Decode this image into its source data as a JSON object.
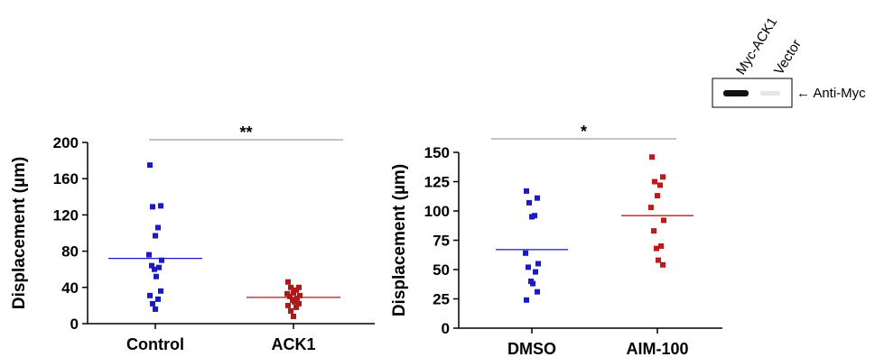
{
  "chart_data": [
    {
      "type": "scatter",
      "ylabel": "Displacement (µm)",
      "ylim": [
        0,
        200
      ],
      "yticks": [
        0,
        40,
        80,
        120,
        160,
        200
      ],
      "categories": [
        "Control",
        "ACK1"
      ],
      "significance": "**",
      "grid": false,
      "series": [
        {
          "color": "#1a1acc",
          "values": [
            175,
            130,
            129,
            106,
            97,
            76,
            70,
            64,
            62,
            60,
            52,
            36,
            31,
            27,
            22,
            16
          ],
          "mean": 72
        },
        {
          "color": "#b01818",
          "values": [
            46,
            40,
            40,
            37,
            34,
            33,
            31,
            30,
            28,
            26,
            24,
            22,
            20,
            18,
            14,
            8
          ],
          "mean": 29
        }
      ]
    },
    {
      "type": "scatter",
      "ylabel": "Displacement (µm)",
      "ylim": [
        0,
        150
      ],
      "yticks": [
        0,
        25,
        50,
        75,
        100,
        125,
        150
      ],
      "categories": [
        "DMSO",
        "AIM-100"
      ],
      "significance": "*",
      "grid": false,
      "series": [
        {
          "color": "#1a1acc",
          "values": [
            117,
            111,
            107,
            96,
            95,
            64,
            55,
            52,
            48,
            40,
            38,
            31,
            24
          ],
          "mean": 67
        },
        {
          "color": "#c41818",
          "values": [
            146,
            129,
            125,
            122,
            113,
            103,
            92,
            83,
            70,
            68,
            58,
            54
          ],
          "mean": 96
        }
      ]
    }
  ],
  "blot": {
    "lanes": [
      "Myc-ACK1",
      "Vector"
    ],
    "annotation": "← Anti-Myc"
  }
}
